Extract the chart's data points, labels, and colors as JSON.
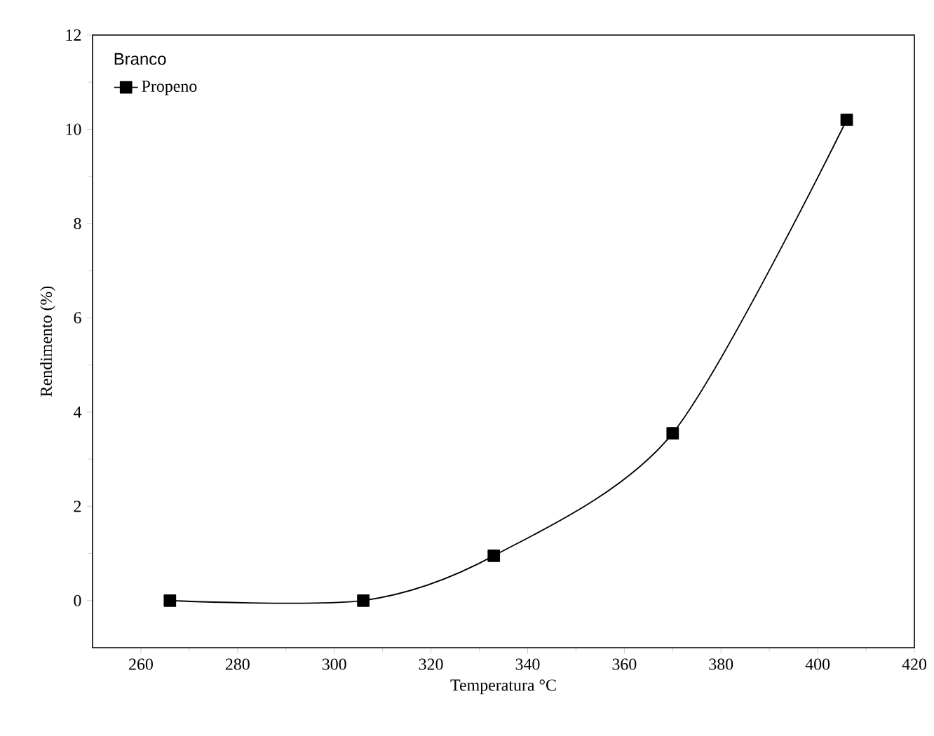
{
  "chart_data": {
    "type": "line",
    "xlabel": "Temperatura °C",
    "ylabel": "Rendimento (%)",
    "legend_title": "Branco",
    "legend": "top left",
    "marker": "square",
    "line_style": "solid",
    "grid": false,
    "x": [
      266,
      306,
      333,
      370,
      406
    ],
    "series": [
      {
        "name": "Propeno",
        "color": "#000000",
        "values": [
          0,
          0,
          0.95,
          3.55,
          10.2
        ]
      }
    ],
    "xlim": [
      250,
      420
    ],
    "xticks": [
      260,
      280,
      300,
      320,
      340,
      360,
      380,
      400,
      420
    ],
    "ylim": [
      -1,
      12
    ],
    "yticks": [
      0,
      2,
      4,
      6,
      8,
      10,
      12
    ]
  }
}
